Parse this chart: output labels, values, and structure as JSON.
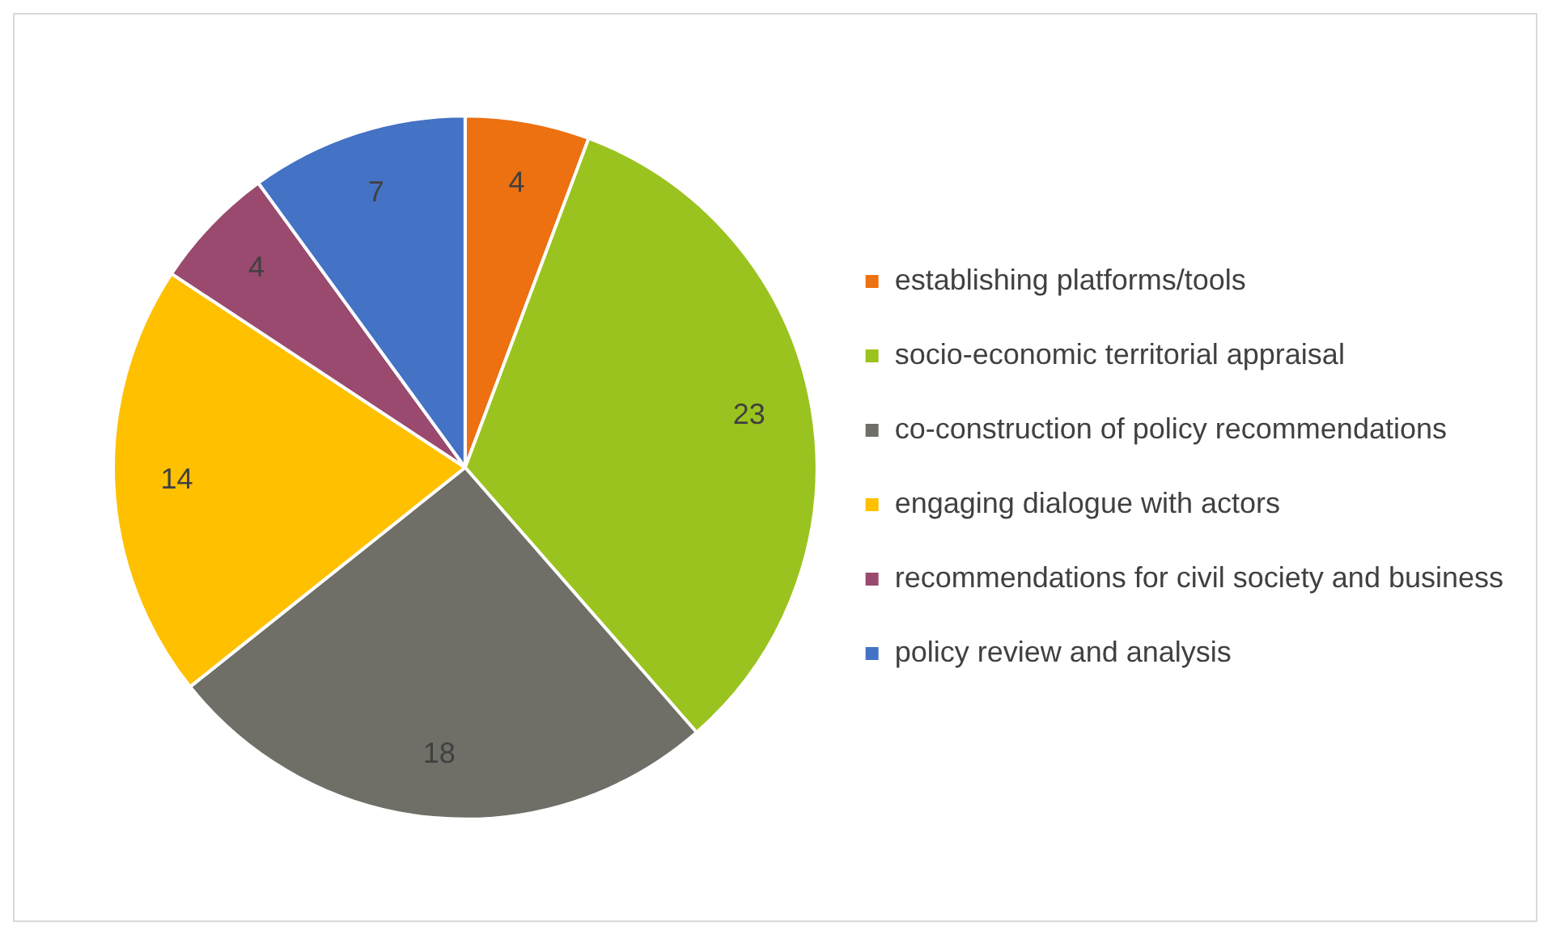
{
  "chart_data": {
    "type": "pie",
    "categories": [
      "establishing platforms/tools",
      "socio-economic territorial appraisal",
      "co-construction of policy recommendations",
      "engaging dialogue with actors",
      "recommendations for civil society and business",
      "policy review and analysis"
    ],
    "values": [
      4,
      23,
      18,
      14,
      4,
      7
    ],
    "colors": [
      "#ed7011",
      "#9bc31f",
      "#6f6f68",
      "#ffc000",
      "#994a6e",
      "#4472c4"
    ],
    "data_labels": true,
    "legend": "right"
  }
}
